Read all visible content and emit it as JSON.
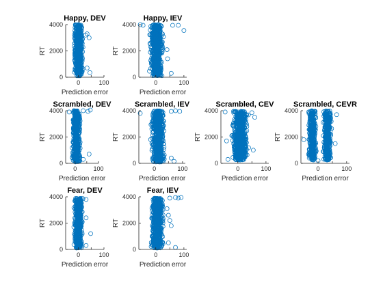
{
  "chart_data": [
    {
      "type": "scatter",
      "title": "Happy, DEV",
      "xlabel": "Prediction error",
      "ylabel": "RT",
      "xlim": [
        -50,
        100
      ],
      "ylim": [
        0,
        4000
      ],
      "xticks": [
        0,
        50,
        100
      ],
      "yticks": [
        0,
        2000,
        4000
      ],
      "xtick_labels": [
        "0",
        "",
        "100"
      ],
      "ytick_labels": [
        "0",
        "2000",
        "4000"
      ],
      "marker_color": "#0072BD",
      "point_count": 500,
      "cloud": {
        "x_min": -20,
        "x_max": 20,
        "y_min": 100,
        "y_max": 4000
      },
      "outliers": [
        {
          "x": 28,
          "y": 3200
        },
        {
          "x": 34,
          "y": 3300
        },
        {
          "x": 42,
          "y": 3000
        },
        {
          "x": 34,
          "y": 700
        },
        {
          "x": 45,
          "y": 350
        }
      ]
    },
    {
      "type": "scatter",
      "title": "Happy, IEV",
      "xlabel": "Prediction error",
      "ylabel": "RT",
      "xlim": [
        -60,
        110
      ],
      "ylim": [
        0,
        4000
      ],
      "xticks": [
        0,
        50,
        100
      ],
      "yticks": [
        0,
        2000,
        4000
      ],
      "xtick_labels": [
        "0",
        "",
        "100"
      ],
      "ytick_labels": [
        "0",
        "2000",
        "4000"
      ],
      "marker_color": "#0072BD",
      "point_count": 600,
      "cloud": {
        "x_min": -25,
        "x_max": 30,
        "y_min": 100,
        "y_max": 4000
      },
      "outliers": [
        {
          "x": -55,
          "y": 4000
        },
        {
          "x": -45,
          "y": 3950
        },
        {
          "x": 60,
          "y": 3950
        },
        {
          "x": 80,
          "y": 3950
        },
        {
          "x": 100,
          "y": 3550
        },
        {
          "x": 40,
          "y": 2100
        },
        {
          "x": 42,
          "y": 1400
        },
        {
          "x": 55,
          "y": 300
        }
      ]
    },
    {
      "type": "scatter",
      "title": "Scrambled, DEV",
      "xlabel": "Prediction error",
      "ylabel": "RT",
      "xlim": [
        -40,
        100
      ],
      "ylim": [
        0,
        4000
      ],
      "xticks": [
        0,
        50,
        100
      ],
      "yticks": [
        0,
        2000,
        4000
      ],
      "xtick_labels": [
        "0",
        "",
        "100"
      ],
      "ytick_labels": [
        "0",
        "2000",
        "4000"
      ],
      "marker_color": "#0072BD",
      "point_count": 500,
      "cloud": {
        "x_min": -15,
        "x_max": 25,
        "y_min": 100,
        "y_max": 4000
      },
      "outliers": [
        {
          "x": -25,
          "y": 3900
        },
        {
          "x": 35,
          "y": 4000
        },
        {
          "x": 55,
          "y": 3950
        },
        {
          "x": 65,
          "y": 4050
        },
        {
          "x": 35,
          "y": 300
        },
        {
          "x": 60,
          "y": 700
        }
      ]
    },
    {
      "type": "scatter",
      "title": "Scrambled, IEV",
      "xlabel": "Prediction error",
      "ylabel": "RT",
      "xlim": [
        -55,
        110
      ],
      "ylim": [
        0,
        4000
      ],
      "xticks": [
        0,
        50,
        100
      ],
      "yticks": [
        0,
        2000,
        4000
      ],
      "xtick_labels": [
        "0",
        "",
        "100"
      ],
      "ytick_labels": [
        "0",
        "2000",
        "4000"
      ],
      "marker_color": "#0072BD",
      "point_count": 600,
      "cloud": {
        "x_min": -15,
        "x_max": 40,
        "y_min": 100,
        "y_max": 4000
      },
      "outliers": [
        {
          "x": -50,
          "y": 3800
        },
        {
          "x": 60,
          "y": 3950
        },
        {
          "x": 75,
          "y": 4000
        },
        {
          "x": 90,
          "y": 3950
        },
        {
          "x": 60,
          "y": 400
        },
        {
          "x": 70,
          "y": 150
        }
      ]
    },
    {
      "type": "scatter",
      "title": "Scrambled, CEV",
      "xlabel": "Prediction error",
      "ylabel": "RT",
      "xlim": [
        -60,
        110
      ],
      "ylim": [
        0,
        4000
      ],
      "xticks": [
        0,
        50,
        100
      ],
      "yticks": [
        0,
        2000,
        4000
      ],
      "xtick_labels": [
        "0",
        "",
        "100"
      ],
      "ytick_labels": [
        "0",
        "2000",
        "4000"
      ],
      "marker_color": "#0072BD",
      "point_count": 700,
      "cloud": {
        "x_min": -25,
        "x_max": 40,
        "y_min": 250,
        "y_max": 3950
      },
      "outliers": [
        {
          "x": -45,
          "y": 3900
        },
        {
          "x": -40,
          "y": 1700
        },
        {
          "x": -35,
          "y": 300
        },
        {
          "x": 50,
          "y": 3850
        },
        {
          "x": 60,
          "y": 3500
        },
        {
          "x": 55,
          "y": 1000
        }
      ]
    },
    {
      "type": "scatter",
      "title": "Scrambled, CEVR",
      "xlabel": "Prediction error",
      "ylabel": "RT",
      "xlim": [
        -60,
        110
      ],
      "ylim": [
        0,
        4000
      ],
      "xticks": [
        0,
        50,
        100
      ],
      "yticks": [
        0,
        2000,
        4000
      ],
      "xtick_labels": [
        "0",
        "",
        "100"
      ],
      "ytick_labels": [
        "0",
        "2000",
        "4000"
      ],
      "marker_color": "#0072BD",
      "point_count": 700,
      "clouds": [
        {
          "x_min": -35,
          "x_max": -5,
          "y_min": 250,
          "y_max": 4000
        },
        {
          "x_min": 15,
          "x_max": 50,
          "y_min": 250,
          "y_max": 4000
        }
      ],
      "outliers": [
        {
          "x": -50,
          "y": 1800
        },
        {
          "x": 65,
          "y": 3700
        },
        {
          "x": 60,
          "y": 1500
        },
        {
          "x": 0,
          "y": 200
        }
      ]
    },
    {
      "type": "scatter",
      "title": "Fear, DEV",
      "xlabel": "Prediction error",
      "ylabel": "RT",
      "xlim": [
        -50,
        100
      ],
      "ylim": [
        0,
        4000
      ],
      "xticks": [
        0,
        50,
        100
      ],
      "yticks": [
        0,
        2000,
        4000
      ],
      "xtick_labels": [
        "0",
        "",
        "100"
      ],
      "ytick_labels": [
        "0",
        "2000",
        "4000"
      ],
      "marker_color": "#0072BD",
      "point_count": 500,
      "cloud": {
        "x_min": -20,
        "x_max": 20,
        "y_min": 100,
        "y_max": 3900
      },
      "outliers": [
        {
          "x": 30,
          "y": 3800
        },
        {
          "x": 30,
          "y": 2400
        },
        {
          "x": 48,
          "y": 1200
        },
        {
          "x": 30,
          "y": 300
        }
      ]
    },
    {
      "type": "scatter",
      "title": "Fear, IEV",
      "xlabel": "Prediction error",
      "ylabel": "RT",
      "xlim": [
        -60,
        110
      ],
      "ylim": [
        0,
        4000
      ],
      "xticks": [
        0,
        50,
        100
      ],
      "yticks": [
        0,
        2000,
        4000
      ],
      "xtick_labels": [
        "0",
        "",
        "100"
      ],
      "ytick_labels": [
        "0",
        "2000",
        "4000"
      ],
      "marker_color": "#0072BD",
      "point_count": 600,
      "cloud": {
        "x_min": -20,
        "x_max": 30,
        "y_min": 100,
        "y_max": 3900
      },
      "outliers": [
        {
          "x": 50,
          "y": 3900
        },
        {
          "x": 70,
          "y": 3950
        },
        {
          "x": 80,
          "y": 3900
        },
        {
          "x": 90,
          "y": 3950
        },
        {
          "x": 40,
          "y": 3100
        },
        {
          "x": 45,
          "y": 2600
        },
        {
          "x": 50,
          "y": 2200
        },
        {
          "x": 55,
          "y": 1800
        },
        {
          "x": 45,
          "y": 500
        },
        {
          "x": 70,
          "y": 150
        }
      ]
    }
  ]
}
